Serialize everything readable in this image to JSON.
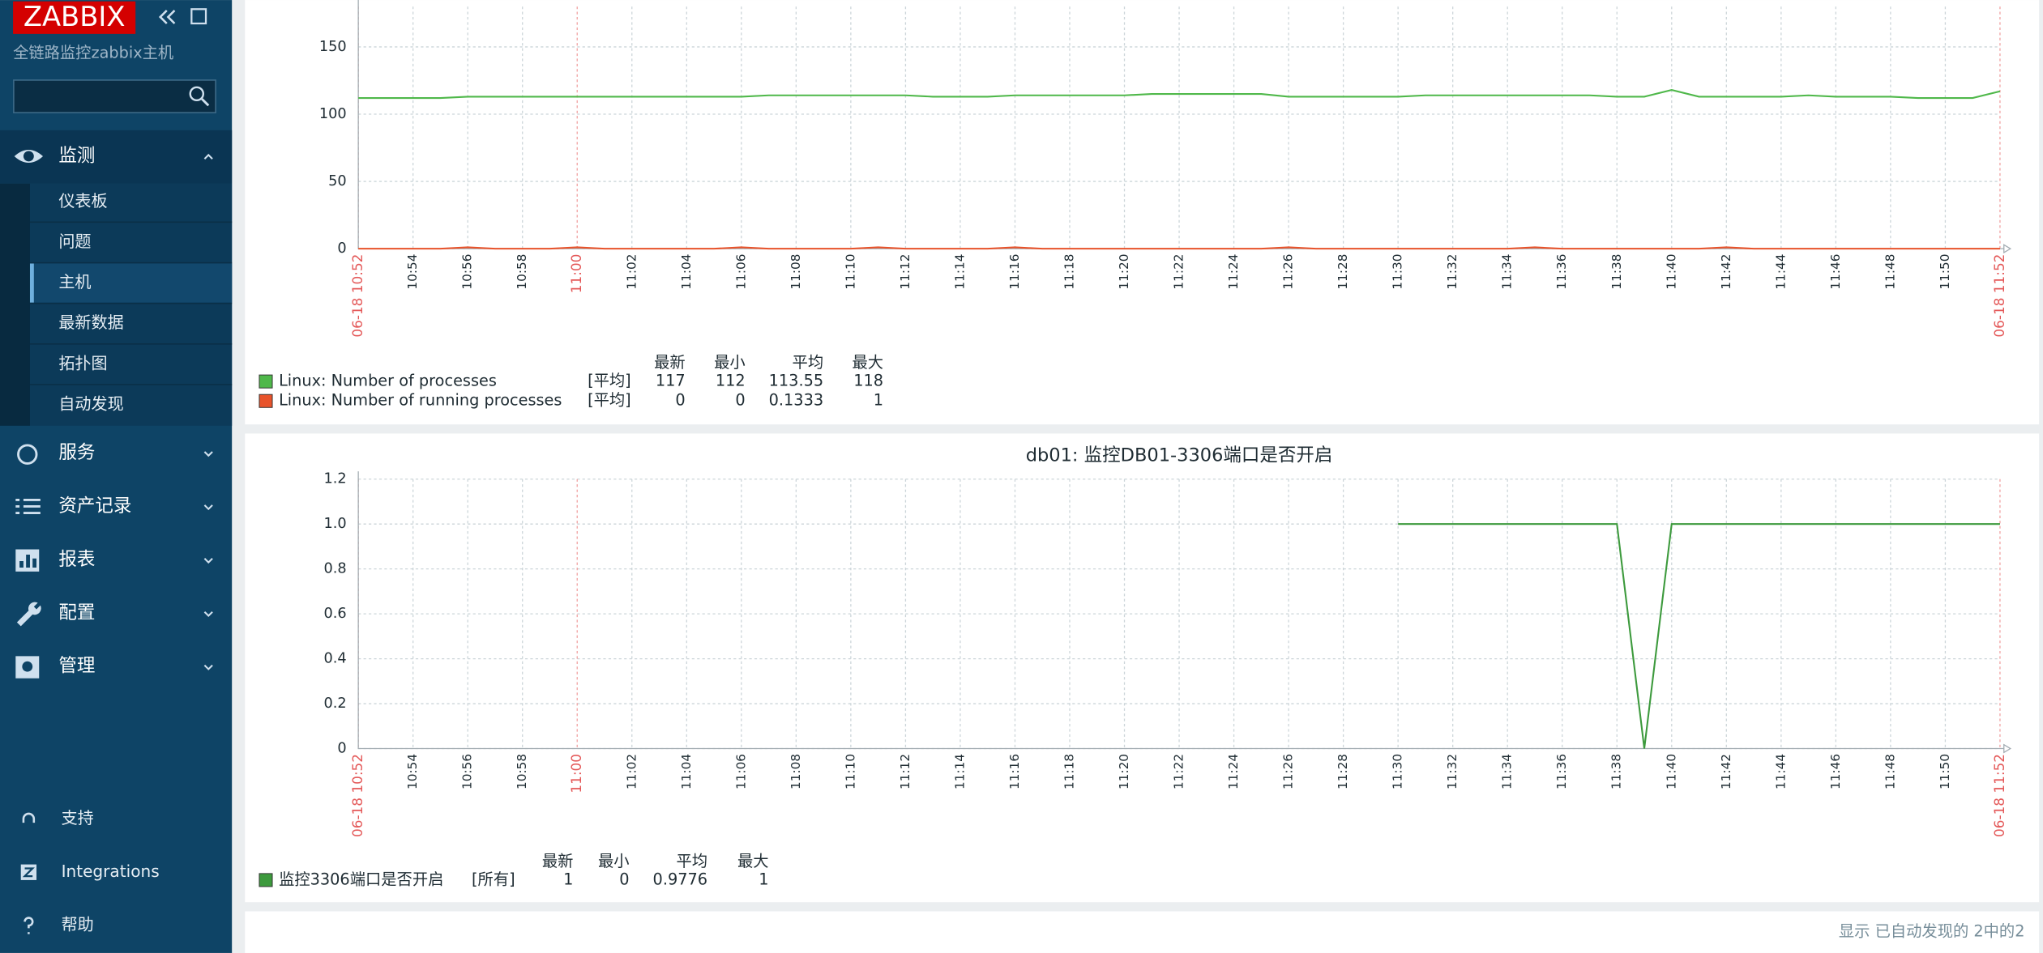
{
  "sidebar": {
    "logo": "ZABBIX",
    "subtitle": "全链路监控zabbix主机",
    "active_child": 2,
    "menu": [
      {
        "label": "监测",
        "children": [
          "仪表板",
          "问题",
          "主机",
          "最新数据",
          "拓扑图",
          "自动发现"
        ]
      },
      {
        "label": "服务"
      },
      {
        "label": "资产记录"
      },
      {
        "label": "报表"
      },
      {
        "label": "配置"
      },
      {
        "label": "管理"
      }
    ],
    "bottom": [
      "支持",
      "Integrations",
      "帮助"
    ]
  },
  "charts": [
    {
      "type": "line",
      "ylim": [
        0,
        180
      ],
      "yticks": [
        0,
        50,
        100,
        150
      ],
      "red_ticks": [
        0,
        4,
        30
      ],
      "xticks": [
        "06-18 10:52",
        "10:54",
        "10:56",
        "10:58",
        "11:00",
        "11:02",
        "11:04",
        "11:06",
        "11:08",
        "11:10",
        "11:12",
        "11:14",
        "11:16",
        "11:18",
        "11:20",
        "11:22",
        "11:24",
        "11:26",
        "11:28",
        "11:30",
        "11:32",
        "11:34",
        "11:36",
        "11:38",
        "11:40",
        "11:42",
        "11:44",
        "11:46",
        "11:48",
        "11:50",
        "06-18 11:52"
      ],
      "legend_headers": [
        "最新",
        "最小",
        "平均",
        "最大"
      ],
      "series": [
        {
          "name": "Linux: Number of processes",
          "color": "#4fb84a",
          "func": "[平均]",
          "stats": [
            117,
            112,
            113.55,
            118
          ],
          "values": [
            112,
            112,
            112,
            112,
            113,
            113,
            113,
            113,
            113,
            113,
            113,
            113,
            113,
            113,
            113,
            114,
            114,
            114,
            114,
            114,
            114,
            113,
            113,
            113,
            114,
            114,
            114,
            114,
            114,
            115,
            115,
            115,
            115,
            115,
            113,
            113,
            113,
            113,
            113,
            114,
            114,
            114,
            114,
            114,
            114,
            114,
            113,
            113,
            118,
            113,
            113,
            113,
            113,
            114,
            113,
            113,
            113,
            112,
            112,
            112,
            117
          ]
        },
        {
          "name": "Linux: Number of running processes",
          "color": "#e8532b",
          "func": "[平均]",
          "stats": [
            0,
            0,
            0.1333,
            1
          ],
          "values": [
            0,
            0,
            0,
            0,
            1,
            0,
            0,
            0,
            1,
            0,
            0,
            0,
            0,
            0,
            1,
            0,
            0,
            0,
            0,
            1,
            0,
            0,
            0,
            0,
            1,
            0,
            0,
            0,
            0,
            0,
            0,
            0,
            0,
            0,
            1,
            0,
            0,
            0,
            0,
            0,
            0,
            0,
            0,
            1,
            0,
            0,
            0,
            0,
            0,
            0,
            1,
            0,
            0,
            0,
            0,
            0,
            0,
            0,
            0,
            0,
            0
          ]
        }
      ]
    },
    {
      "type": "line",
      "title": "db01: 监控DB01-3306端口是否开启",
      "ylim": [
        0,
        1.2
      ],
      "yticks": [
        0,
        0.2,
        0.4,
        0.6,
        0.8,
        {
          "value": 1,
          "label": "1.0"
        },
        1.2
      ],
      "red_ticks": [
        0,
        4,
        30
      ],
      "xticks": [
        "06-18 10:52",
        "10:54",
        "10:56",
        "10:58",
        "11:00",
        "11:02",
        "11:04",
        "11:06",
        "11:08",
        "11:10",
        "11:12",
        "11:14",
        "11:16",
        "11:18",
        "11:20",
        "11:22",
        "11:24",
        "11:26",
        "11:28",
        "11:30",
        "11:32",
        "11:34",
        "11:36",
        "11:38",
        "11:40",
        "11:42",
        "11:44",
        "11:46",
        "11:48",
        "11:50",
        "06-18 11:52"
      ],
      "legend_headers": [
        "最新",
        "最小",
        "平均",
        "最大"
      ],
      "series": [
        {
          "name": "监控3306端口是否开启",
          "color": "#3d9a3d",
          "func": "[所有]",
          "stats": [
            1,
            0,
            0.9776,
            1
          ],
          "values": [
            null,
            null,
            null,
            null,
            null,
            null,
            null,
            null,
            null,
            null,
            null,
            null,
            null,
            null,
            null,
            null,
            null,
            null,
            null,
            null,
            null,
            null,
            null,
            null,
            null,
            null,
            null,
            null,
            null,
            null,
            null,
            null,
            null,
            null,
            null,
            null,
            null,
            null,
            1,
            1,
            1,
            1,
            1,
            1,
            1,
            1,
            1,
            0,
            1,
            1,
            1,
            1,
            1,
            1,
            1,
            1,
            1,
            1,
            1,
            1,
            1
          ]
        }
      ]
    }
  ],
  "footer": "显示 已自动发现的 2中的2"
}
